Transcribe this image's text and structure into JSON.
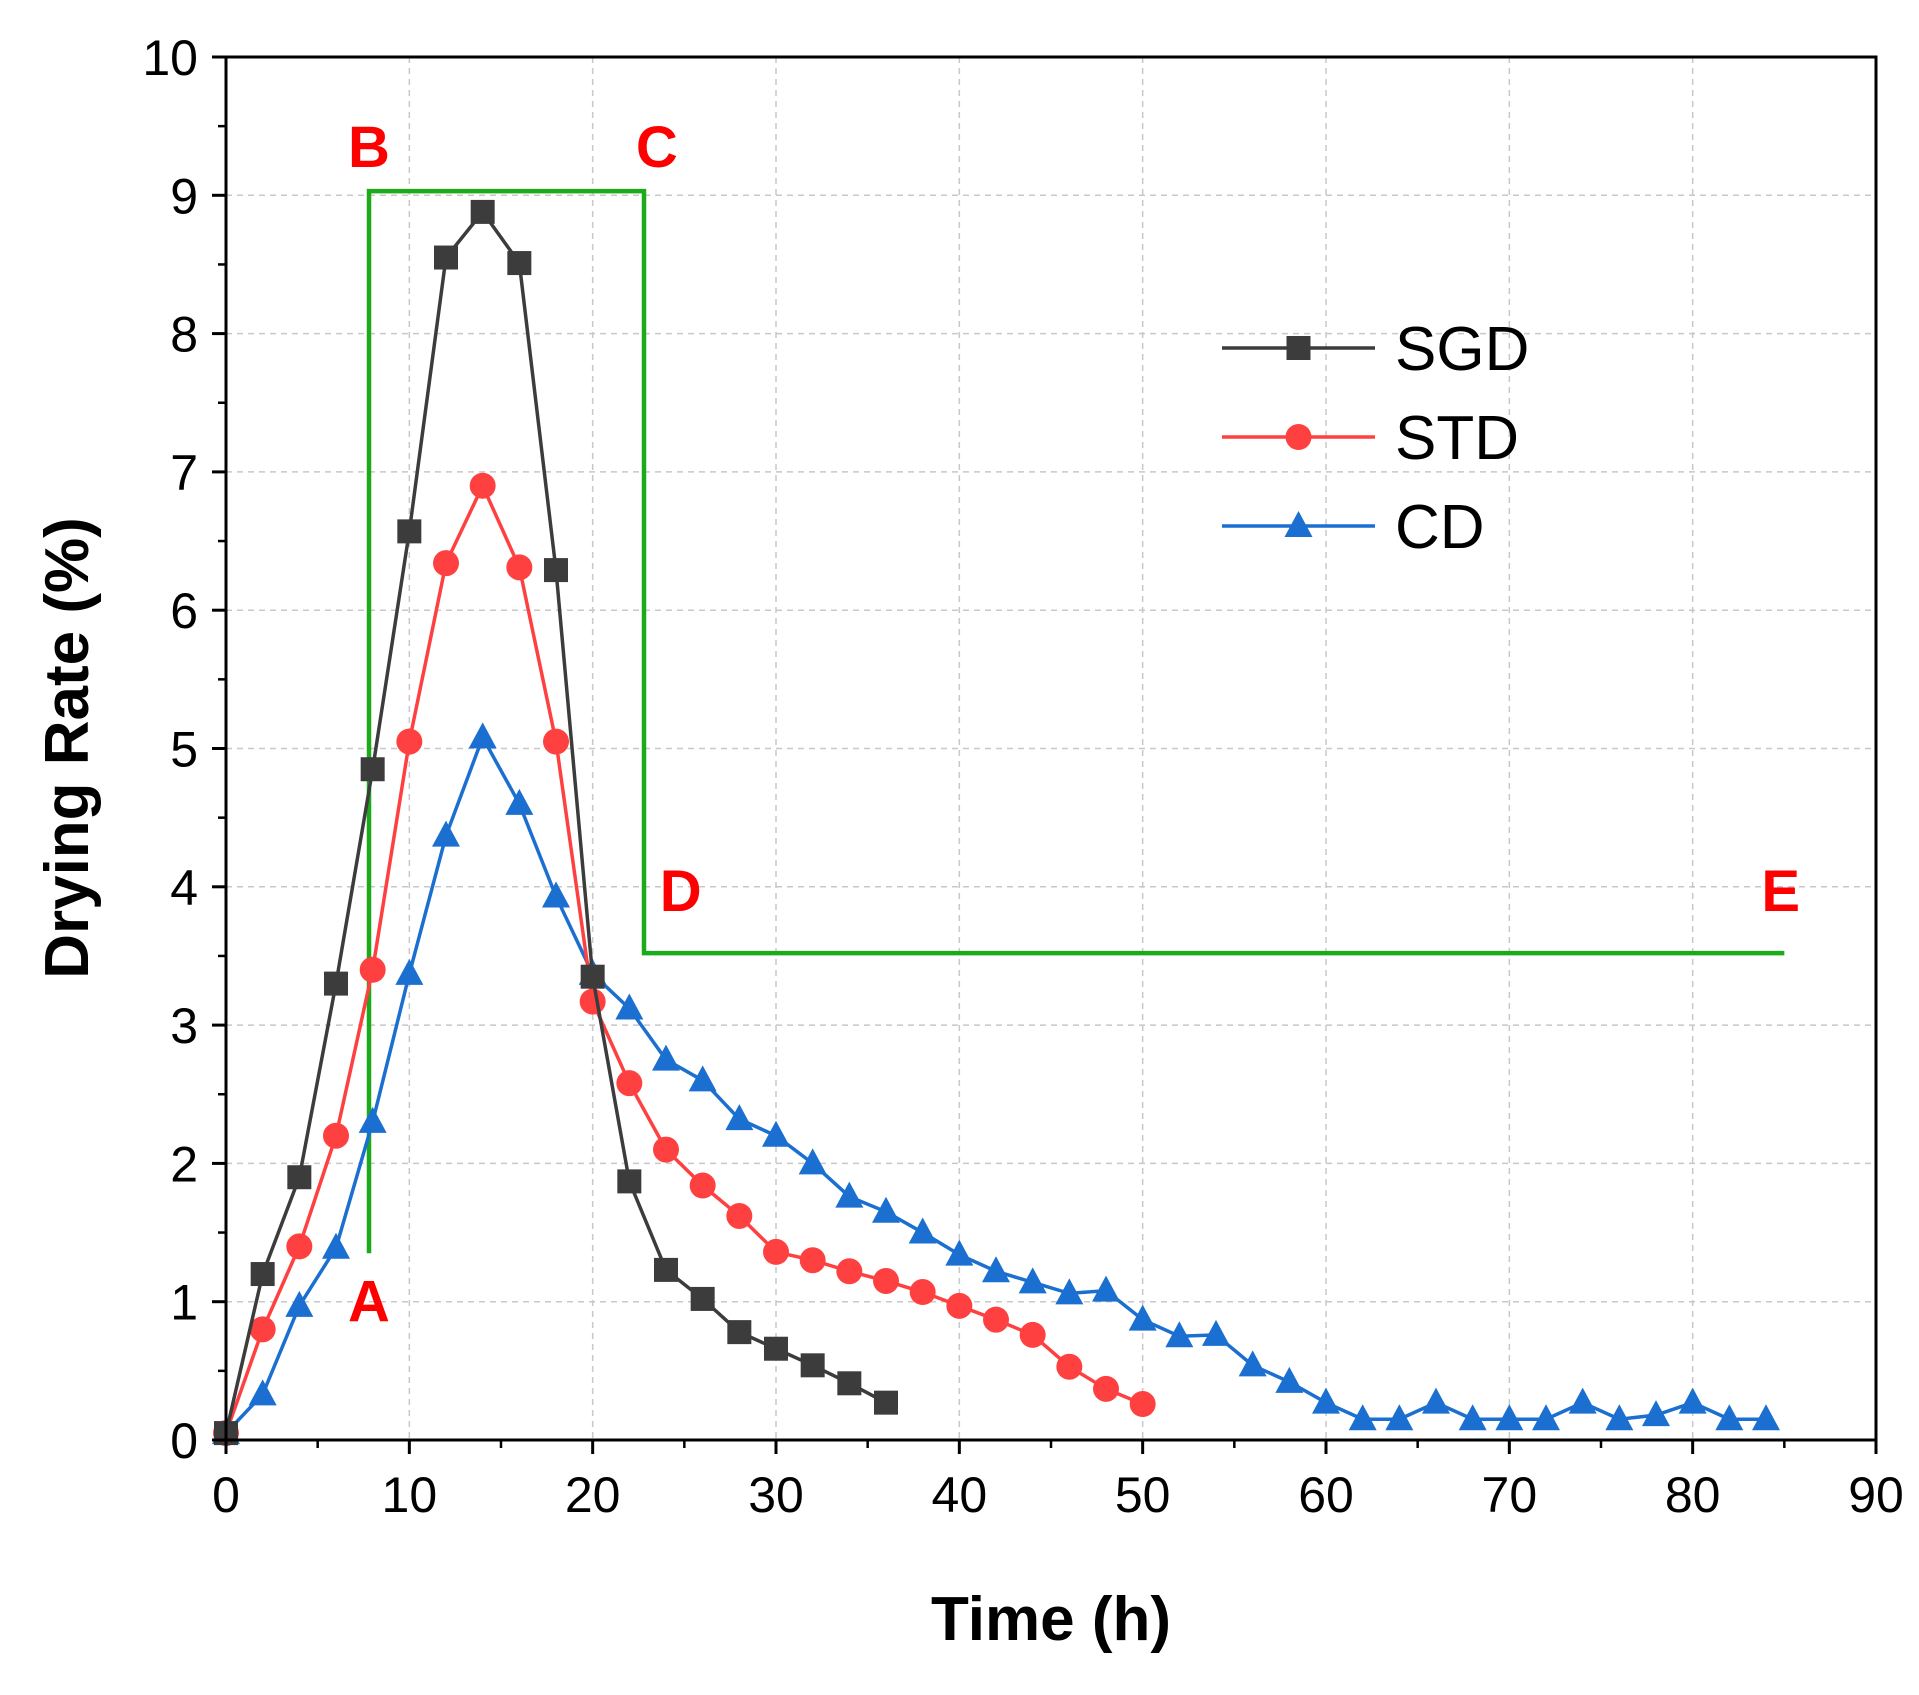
{
  "chart_data": {
    "type": "line",
    "title": "",
    "xlabel": "Time (h)",
    "ylabel": "Drying Rate (%)",
    "xlim": [
      0,
      90
    ],
    "ylim": [
      0,
      10
    ],
    "xticks": [
      0,
      10,
      20,
      30,
      40,
      50,
      60,
      70,
      80,
      90
    ],
    "yticks": [
      0,
      1,
      2,
      3,
      4,
      5,
      6,
      7,
      8,
      9,
      10
    ],
    "grid": true,
    "legend_position": "top-right",
    "series": [
      {
        "name": "SGD",
        "color": "#3c3c3c",
        "marker": "square",
        "x": [
          0,
          2,
          4,
          6,
          8,
          10,
          12,
          14,
          16,
          18,
          20,
          22,
          24,
          26,
          28,
          30,
          32,
          34,
          36
        ],
        "y": [
          0.05,
          1.2,
          1.9,
          3.3,
          4.85,
          6.57,
          8.55,
          8.88,
          8.51,
          6.29,
          3.35,
          1.87,
          1.23,
          1.02,
          0.78,
          0.66,
          0.54,
          0.41,
          0.27
        ]
      },
      {
        "name": "STD",
        "color": "#ff4040",
        "marker": "circle",
        "x": [
          0,
          2,
          4,
          6,
          8,
          10,
          12,
          14,
          16,
          18,
          20,
          22,
          24,
          26,
          28,
          30,
          32,
          34,
          36,
          38,
          40,
          42,
          44,
          46,
          48,
          50
        ],
        "y": [
          0.05,
          0.8,
          1.4,
          2.2,
          3.4,
          5.05,
          6.34,
          6.9,
          6.31,
          5.05,
          3.17,
          2.58,
          2.1,
          1.84,
          1.62,
          1.36,
          1.3,
          1.22,
          1.15,
          1.07,
          0.97,
          0.87,
          0.76,
          0.53,
          0.37,
          0.26
        ]
      },
      {
        "name": "CD",
        "color": "#1a6fd0",
        "marker": "triangle",
        "x": [
          0,
          2,
          4,
          6,
          8,
          10,
          12,
          14,
          16,
          18,
          20,
          22,
          24,
          26,
          28,
          30,
          32,
          34,
          36,
          38,
          40,
          42,
          44,
          46,
          48,
          50,
          52,
          54,
          56,
          58,
          60,
          62,
          64,
          66,
          68,
          70,
          72,
          74,
          76,
          78,
          80,
          82,
          84
        ],
        "y": [
          0.05,
          0.33,
          0.97,
          1.39,
          2.3,
          3.37,
          4.37,
          5.08,
          4.6,
          3.93,
          3.37,
          3.12,
          2.75,
          2.6,
          2.32,
          2.2,
          2.0,
          1.76,
          1.65,
          1.5,
          1.34,
          1.22,
          1.14,
          1.06,
          1.08,
          0.87,
          0.75,
          0.76,
          0.54,
          0.42,
          0.27,
          0.15,
          0.15,
          0.27,
          0.15,
          0.15,
          0.15,
          0.27,
          0.15,
          0.18,
          0.27,
          0.15,
          0.15
        ]
      }
    ],
    "annotations": {
      "color": "#1aaa1a",
      "line_points": [
        {
          "label": "A",
          "x": 7.8,
          "y": 1.35
        },
        {
          "label": "B",
          "x": 7.8,
          "y": 9.03
        },
        {
          "label": "C",
          "x": 22.8,
          "y": 9.03
        },
        {
          "label": "D",
          "x": 22.8,
          "y": 3.52
        },
        {
          "label": "E",
          "x": 85,
          "y": 3.52
        }
      ],
      "labels": [
        {
          "text": "A",
          "x": 7.8,
          "y": 1.0
        },
        {
          "text": "B",
          "x": 7.8,
          "y": 9.35
        },
        {
          "text": "C",
          "x": 23.5,
          "y": 9.35
        },
        {
          "text": "D",
          "x": 24.8,
          "y": 3.97
        },
        {
          "text": "E",
          "x": 84.8,
          "y": 3.97
        }
      ]
    }
  }
}
